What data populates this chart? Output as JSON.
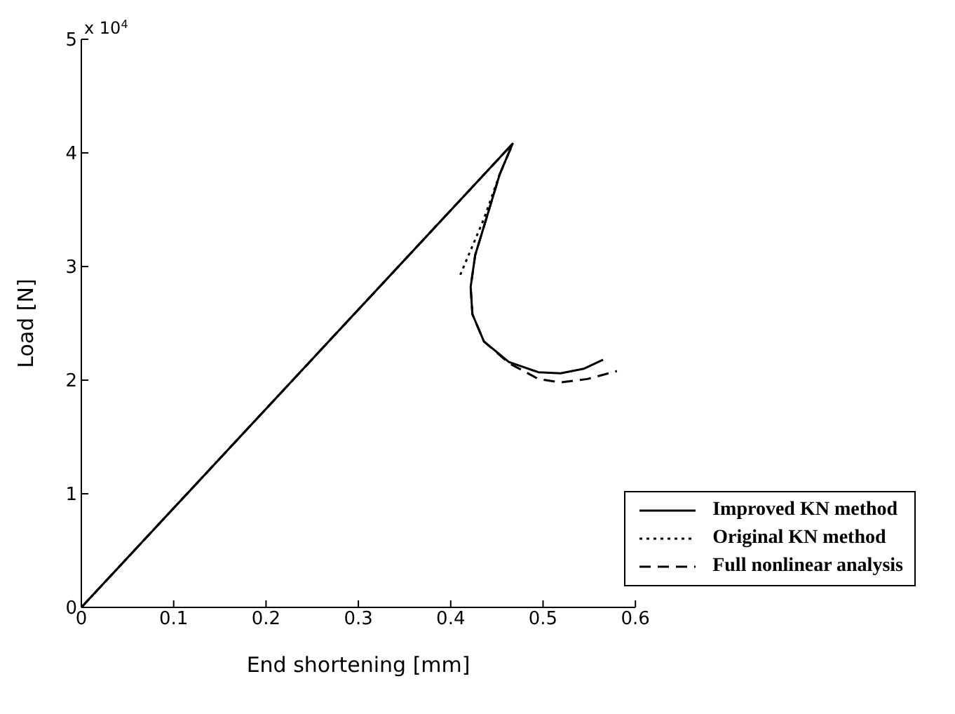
{
  "chart_data": {
    "type": "line",
    "xlabel": "End shortening [mm]",
    "ylabel": "Load [N]",
    "annotations": [
      "x 10$^{4}$"
    ],
    "xlim": [
      0,
      0.6
    ],
    "xticks": [
      0,
      0.1,
      0.2,
      0.3,
      0.4,
      0.5,
      0.6
    ],
    "ylim": [
      0,
      5
    ],
    "yticks": [
      0,
      1,
      2,
      3,
      4,
      5
    ],
    "grid": false,
    "legend": "bottom right",
    "marker": "none",
    "series": [
      {
        "name": "Improved KN method",
        "color": "#000000",
        "line_style": "solid",
        "x": [
          0,
          0.467,
          0.453,
          0.44,
          0.4265,
          0.4216,
          0.4235,
          0.436,
          0.463,
          0.495,
          0.519,
          0.544,
          0.565
        ],
        "values": [
          0,
          4.08,
          3.81,
          3.46,
          3.1,
          2.82,
          2.58,
          2.34,
          2.16,
          2.07,
          2.06,
          2.1,
          2.18
        ]
      },
      {
        "name": "Original KN method",
        "color": "#000000",
        "line_style": "dotted",
        "x": [
          0,
          0.467,
          0.453,
          0.436,
          0.41
        ],
        "values": [
          0,
          4.08,
          3.81,
          3.42,
          2.92
        ]
      },
      {
        "name": "Full nonlinear analysis",
        "color": "#000000",
        "line_style": "dashed",
        "x": [
          0,
          0.467,
          0.453,
          0.44,
          0.4265,
          0.4216,
          0.4235,
          0.436,
          0.463,
          0.495,
          0.519,
          0.548,
          0.58
        ],
        "values": [
          0,
          4.08,
          3.81,
          3.46,
          3.1,
          2.82,
          2.58,
          2.34,
          2.15,
          2.01,
          1.98,
          2.01,
          2.08
        ]
      }
    ]
  }
}
